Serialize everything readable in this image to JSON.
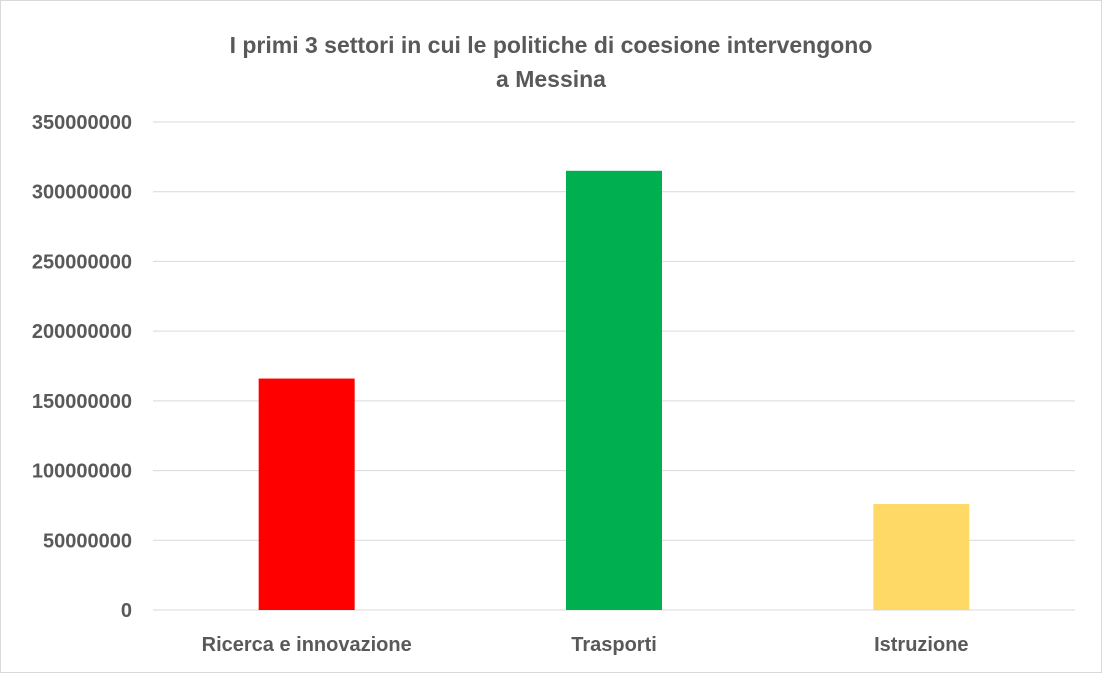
{
  "chart_data": {
    "type": "bar",
    "title_lines": [
      "I primi 3 settori in cui le politiche di coesione intervengono",
      "a Messina"
    ],
    "categories": [
      "Ricerca e innovazione",
      "Trasporti",
      "Istruzione"
    ],
    "values": [
      166000000,
      315000000,
      76000000
    ],
    "bar_colors": [
      "#ff0000",
      "#00b050",
      "#ffd966"
    ],
    "yticks": [
      "0",
      "50000000",
      "100000000",
      "150000000",
      "200000000",
      "250000000",
      "300000000",
      "350000000"
    ],
    "ylim": [
      0,
      350000000
    ],
    "grid": true,
    "legend": "none"
  }
}
